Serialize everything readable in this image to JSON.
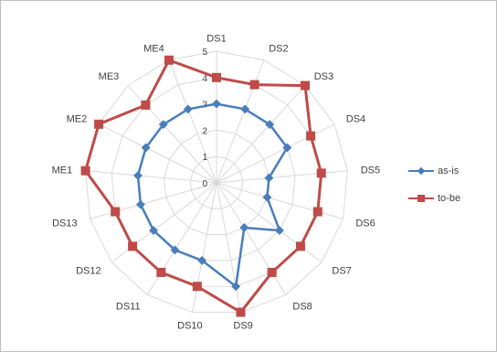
{
  "chart_data": {
    "type": "radar",
    "categories": [
      "DS1",
      "DS2",
      "DS3",
      "DS4",
      "DS5",
      "DS6",
      "DS7",
      "DS8",
      "DS9",
      "DS10",
      "DS11",
      "DS12",
      "DS13",
      "ME1",
      "ME2",
      "ME3",
      "ME4"
    ],
    "rlim": [
      0,
      5
    ],
    "ticks": [
      "0",
      "1",
      "2",
      "3",
      "4",
      "5"
    ],
    "grid": true,
    "legend_position": "right",
    "series": [
      {
        "name": "as-is",
        "color": "#4a7ebb",
        "marker": "diamond",
        "values": [
          3,
          3,
          3,
          3,
          2,
          2,
          3,
          2,
          4,
          3,
          3,
          3,
          3,
          3,
          3,
          3,
          3
        ]
      },
      {
        "name": "to-be",
        "color": "#be4b48",
        "marker": "square",
        "values": [
          4,
          4,
          5,
          4,
          4,
          4,
          4,
          4,
          5,
          4,
          4,
          4,
          4,
          5,
          5,
          4,
          5
        ]
      }
    ]
  }
}
